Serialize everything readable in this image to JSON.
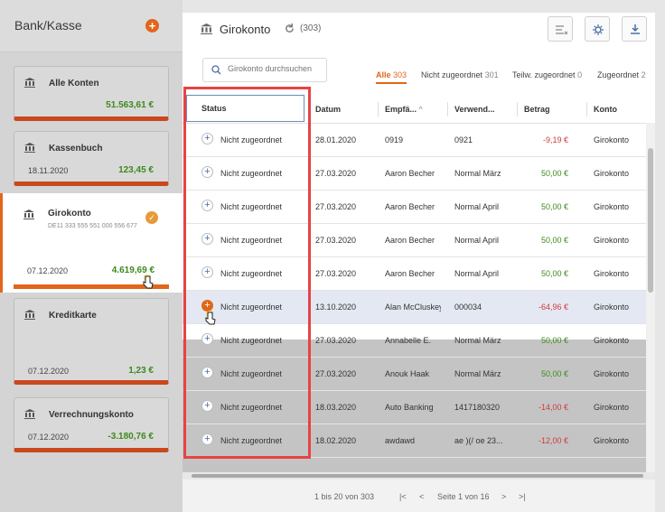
{
  "sidebar": {
    "title": "Bank/Kasse",
    "add_label": "+",
    "cards": [
      {
        "title": "Alle Konten",
        "date": "",
        "amount": "51.563,61 €"
      },
      {
        "title": "Kassenbuch",
        "date": "18.11.2020",
        "amount": "123,45 €"
      },
      {
        "title": "Girokonto",
        "iban": "DE11 333 555 551 000 556 677",
        "date": "07.12.2020",
        "amount": "4.619,69 €"
      },
      {
        "title": "Kreditkarte",
        "date": "07.12.2020",
        "amount": "1,23 €"
      },
      {
        "title": "Verrechnungskonto",
        "date": "07.12.2020",
        "amount": "-3.180,76 €"
      }
    ]
  },
  "header": {
    "title": "Girokonto",
    "count": "(303)"
  },
  "search": {
    "placeholder": "Girokonto durchsuchen"
  },
  "tabs": [
    {
      "label": "Alle",
      "count": "303"
    },
    {
      "label": "Nicht zugeordnet",
      "count": "301"
    },
    {
      "label": "Teilw. zugeordnet",
      "count": "0"
    },
    {
      "label": "Zugeordnet",
      "count": "2"
    }
  ],
  "columns": {
    "status": "Status",
    "datum": "Datum",
    "empf": "Empfä...",
    "verw": "Verwend...",
    "betrag": "Betrag",
    "konto": "Konto"
  },
  "rows": [
    {
      "status": "Nicht zugeordnet",
      "datum": "28.01.2020",
      "empf": "0919",
      "verw": "0921",
      "betrag": "-9,19 €",
      "konto": "Girokonto"
    },
    {
      "status": "Nicht zugeordnet",
      "datum": "27.03.2020",
      "empf": "Aaron Becher",
      "verw": "Normal März",
      "betrag": "50,00 €",
      "konto": "Girokonto"
    },
    {
      "status": "Nicht zugeordnet",
      "datum": "27.03.2020",
      "empf": "Aaron Becher",
      "verw": "Normal April",
      "betrag": "50,00 €",
      "konto": "Girokonto"
    },
    {
      "status": "Nicht zugeordnet",
      "datum": "27.03.2020",
      "empf": "Aaron Becher",
      "verw": "Normal April",
      "betrag": "50,00 €",
      "konto": "Girokonto"
    },
    {
      "status": "Nicht zugeordnet",
      "datum": "27.03.2020",
      "empf": "Aaron Becher",
      "verw": "Normal April",
      "betrag": "50,00 €",
      "konto": "Girokonto"
    },
    {
      "status": "Nicht zugeordnet",
      "datum": "13.10.2020",
      "empf": "Alan McCluskey",
      "verw": "000034",
      "betrag": "-64,96 €",
      "konto": "Girokonto"
    },
    {
      "status": "Nicht zugeordnet",
      "datum": "27.03.2020",
      "empf": "Annabelle E.",
      "verw": "Normal März",
      "betrag": "50,00 €",
      "konto": "Girokonto"
    },
    {
      "status": "Nicht zugeordnet",
      "datum": "27.03.2020",
      "empf": "Anouk Haak",
      "verw": "Normal März",
      "betrag": "50,00 €",
      "konto": "Girokonto"
    },
    {
      "status": "Nicht zugeordnet",
      "datum": "18.03.2020",
      "empf": "Auto Banking",
      "verw": "1417180320",
      "betrag": "-14,00 €",
      "konto": "Girokonto"
    },
    {
      "status": "Nicht zugeordnet",
      "datum": "18.02.2020",
      "empf": "awdawd",
      "verw": "ae )(/ oe 23...",
      "betrag": "-12,00 €",
      "konto": "Girokonto"
    }
  ],
  "pager": {
    "range": "1 bis 20 von 303",
    "first": "|<",
    "prev": "<",
    "page": "Seite 1 von 16",
    "next": ">",
    "last": ">|"
  },
  "colors": {
    "accent": "#e2661a",
    "positive": "#3d8a1c",
    "negative": "#d03a3a",
    "highlight": "#e4e8f3",
    "annotation": "#e64444"
  }
}
